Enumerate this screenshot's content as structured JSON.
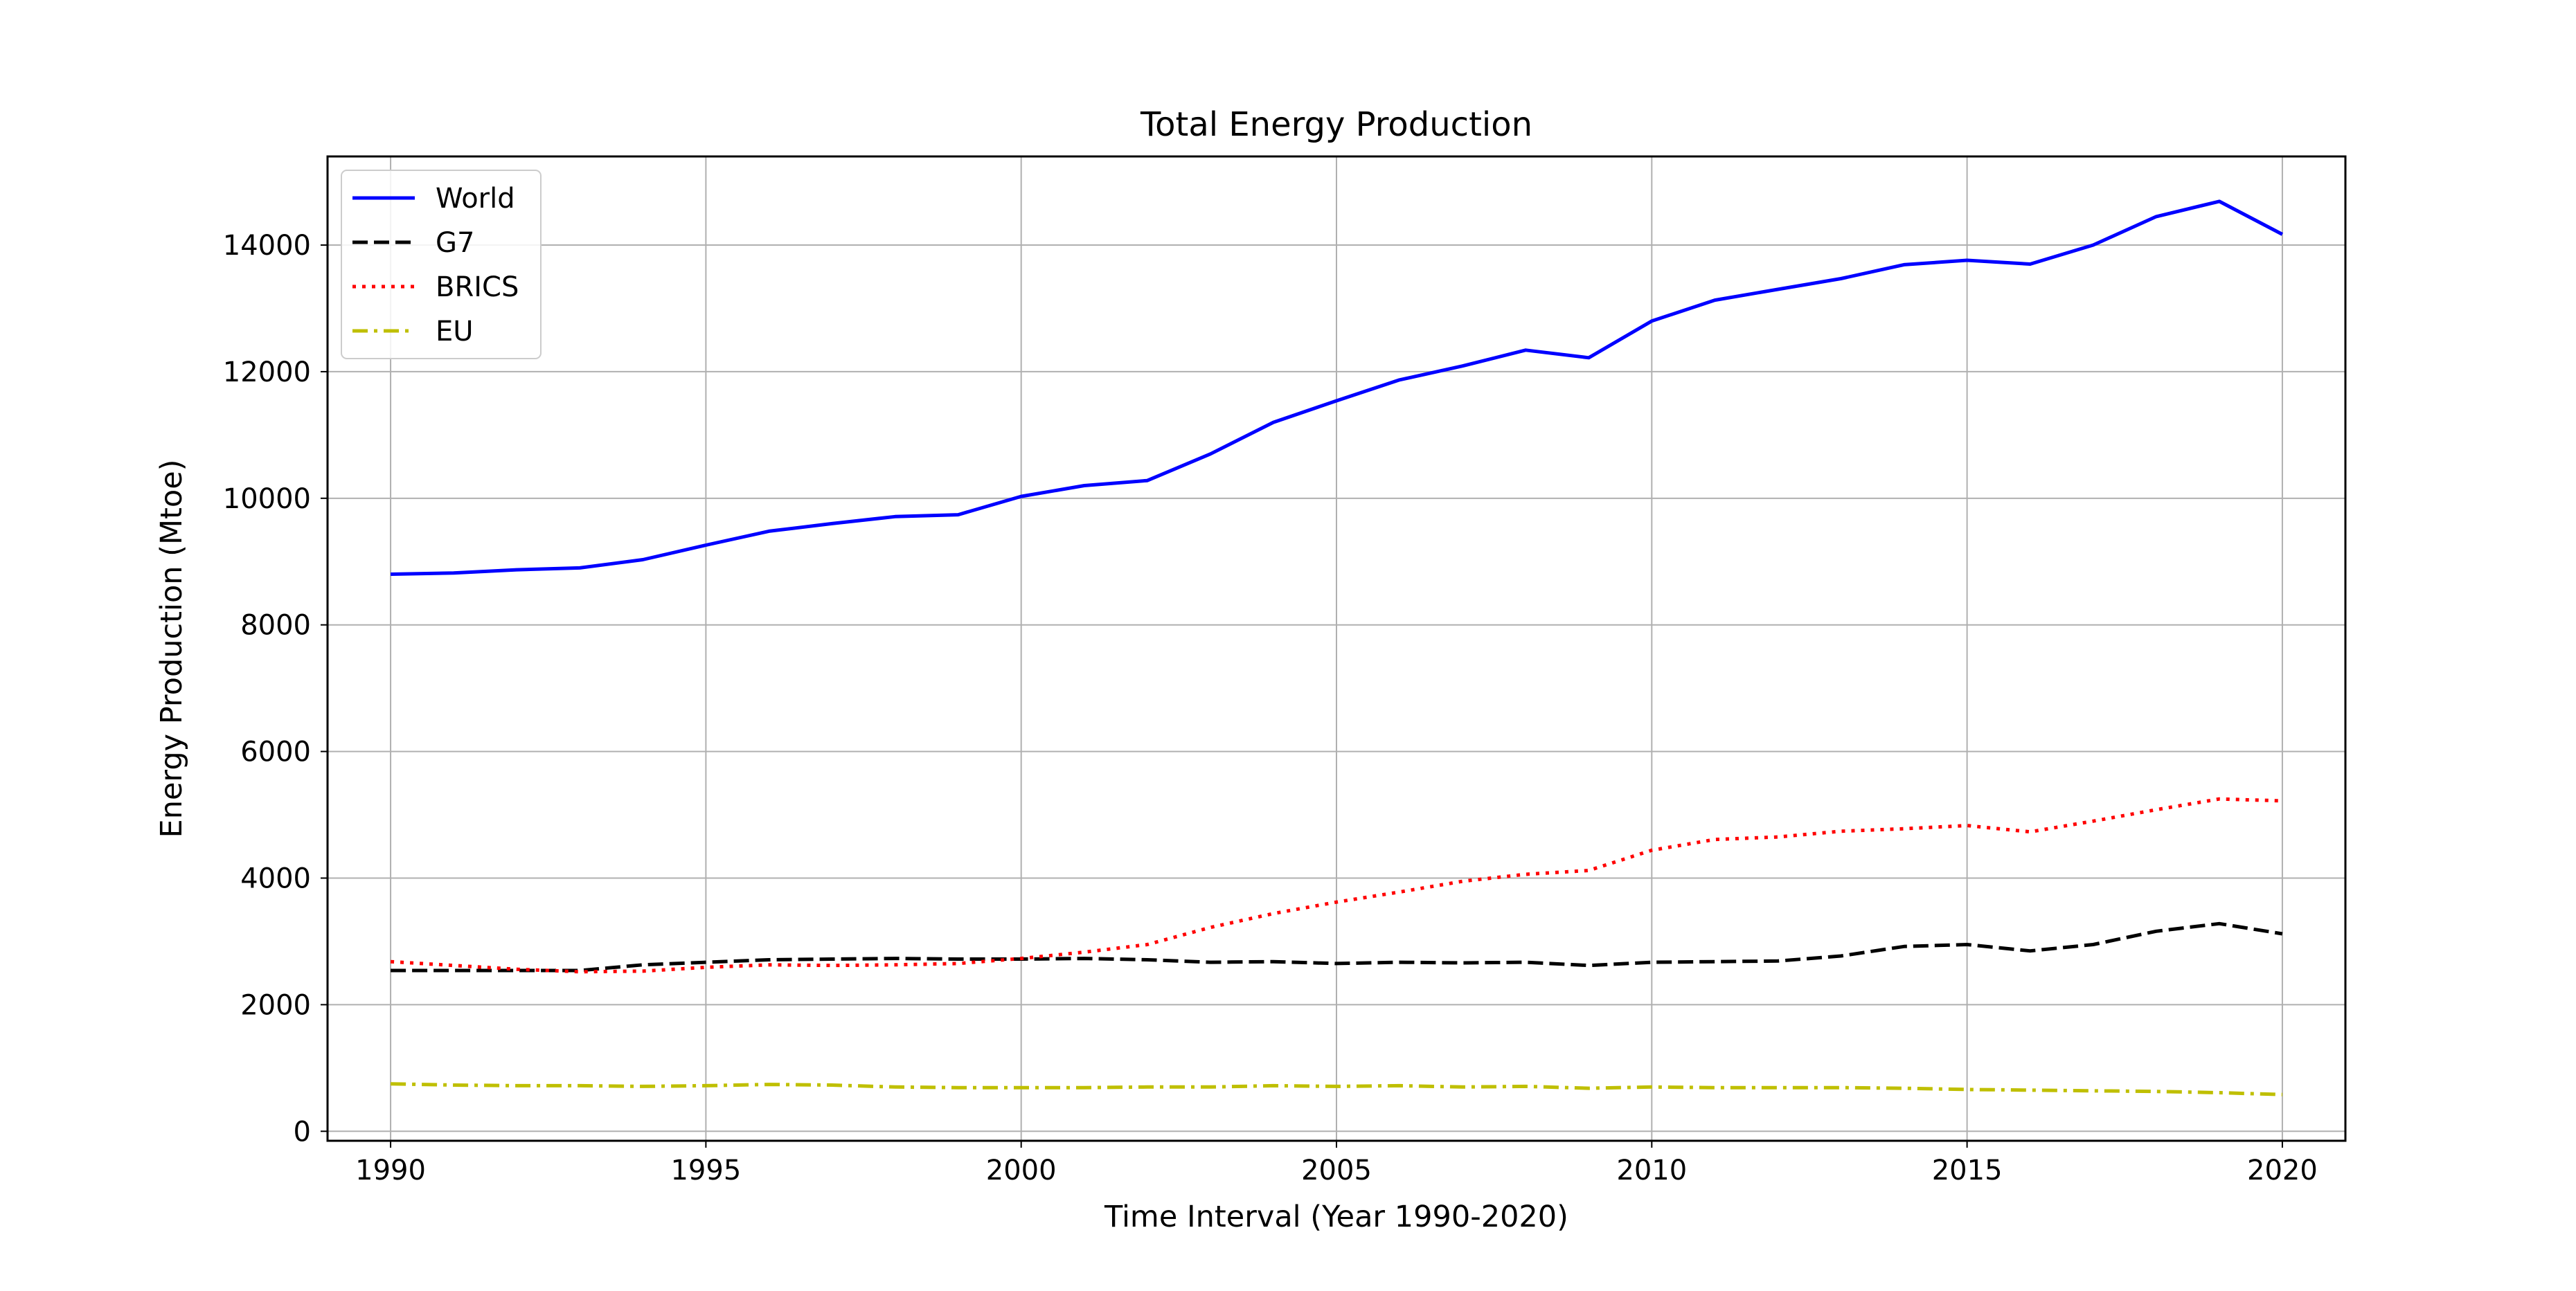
{
  "chart_data": {
    "type": "line",
    "title": "Total Energy Production",
    "xlabel": "Time Interval (Year 1990-2020)",
    "ylabel": "Energy Production (Mtoe)",
    "xlim": [
      1989,
      2021
    ],
    "ylim": [
      -150,
      15400
    ],
    "xticks": [
      1990,
      1995,
      2000,
      2005,
      2010,
      2015,
      2020
    ],
    "yticks": [
      0,
      2000,
      4000,
      6000,
      8000,
      10000,
      12000,
      14000
    ],
    "grid": true,
    "legend_position": "top-left",
    "x": [
      1990,
      1991,
      1992,
      1993,
      1994,
      1995,
      1996,
      1997,
      1998,
      1999,
      2000,
      2001,
      2002,
      2003,
      2004,
      2005,
      2006,
      2007,
      2008,
      2009,
      2010,
      2011,
      2012,
      2013,
      2014,
      2015,
      2016,
      2017,
      2018,
      2019,
      2020
    ],
    "series": [
      {
        "name": "World",
        "color": "#0000ff",
        "style": "solid",
        "values": [
          8800,
          8820,
          8870,
          8900,
          9030,
          9260,
          9480,
          9600,
          9710,
          9740,
          10030,
          10200,
          10280,
          10700,
          11200,
          11540,
          11870,
          12090,
          12340,
          12220,
          12800,
          13130,
          13300,
          13470,
          13690,
          13760,
          13700,
          14000,
          14450,
          14690,
          14170
        ]
      },
      {
        "name": "G7",
        "color": "#000000",
        "style": "dashed",
        "values": [
          2540,
          2540,
          2540,
          2540,
          2630,
          2670,
          2710,
          2720,
          2730,
          2720,
          2720,
          2730,
          2710,
          2670,
          2680,
          2650,
          2670,
          2660,
          2670,
          2620,
          2670,
          2680,
          2690,
          2770,
          2920,
          2950,
          2850,
          2950,
          3160,
          3280,
          3120
        ]
      },
      {
        "name": "BRICS",
        "color": "#ff0000",
        "style": "dotted",
        "values": [
          2680,
          2620,
          2560,
          2520,
          2530,
          2590,
          2630,
          2620,
          2630,
          2650,
          2730,
          2830,
          2950,
          3220,
          3440,
          3620,
          3780,
          3950,
          4060,
          4120,
          4440,
          4610,
          4650,
          4740,
          4780,
          4830,
          4730,
          4900,
          5080,
          5250,
          5220
        ]
      },
      {
        "name": "EU",
        "color": "#bfbf00",
        "style": "dashdot",
        "values": [
          750,
          730,
          720,
          720,
          710,
          720,
          740,
          730,
          700,
          690,
          690,
          690,
          700,
          700,
          720,
          710,
          720,
          700,
          710,
          680,
          700,
          690,
          690,
          690,
          680,
          660,
          650,
          640,
          630,
          610,
          580
        ]
      }
    ]
  }
}
